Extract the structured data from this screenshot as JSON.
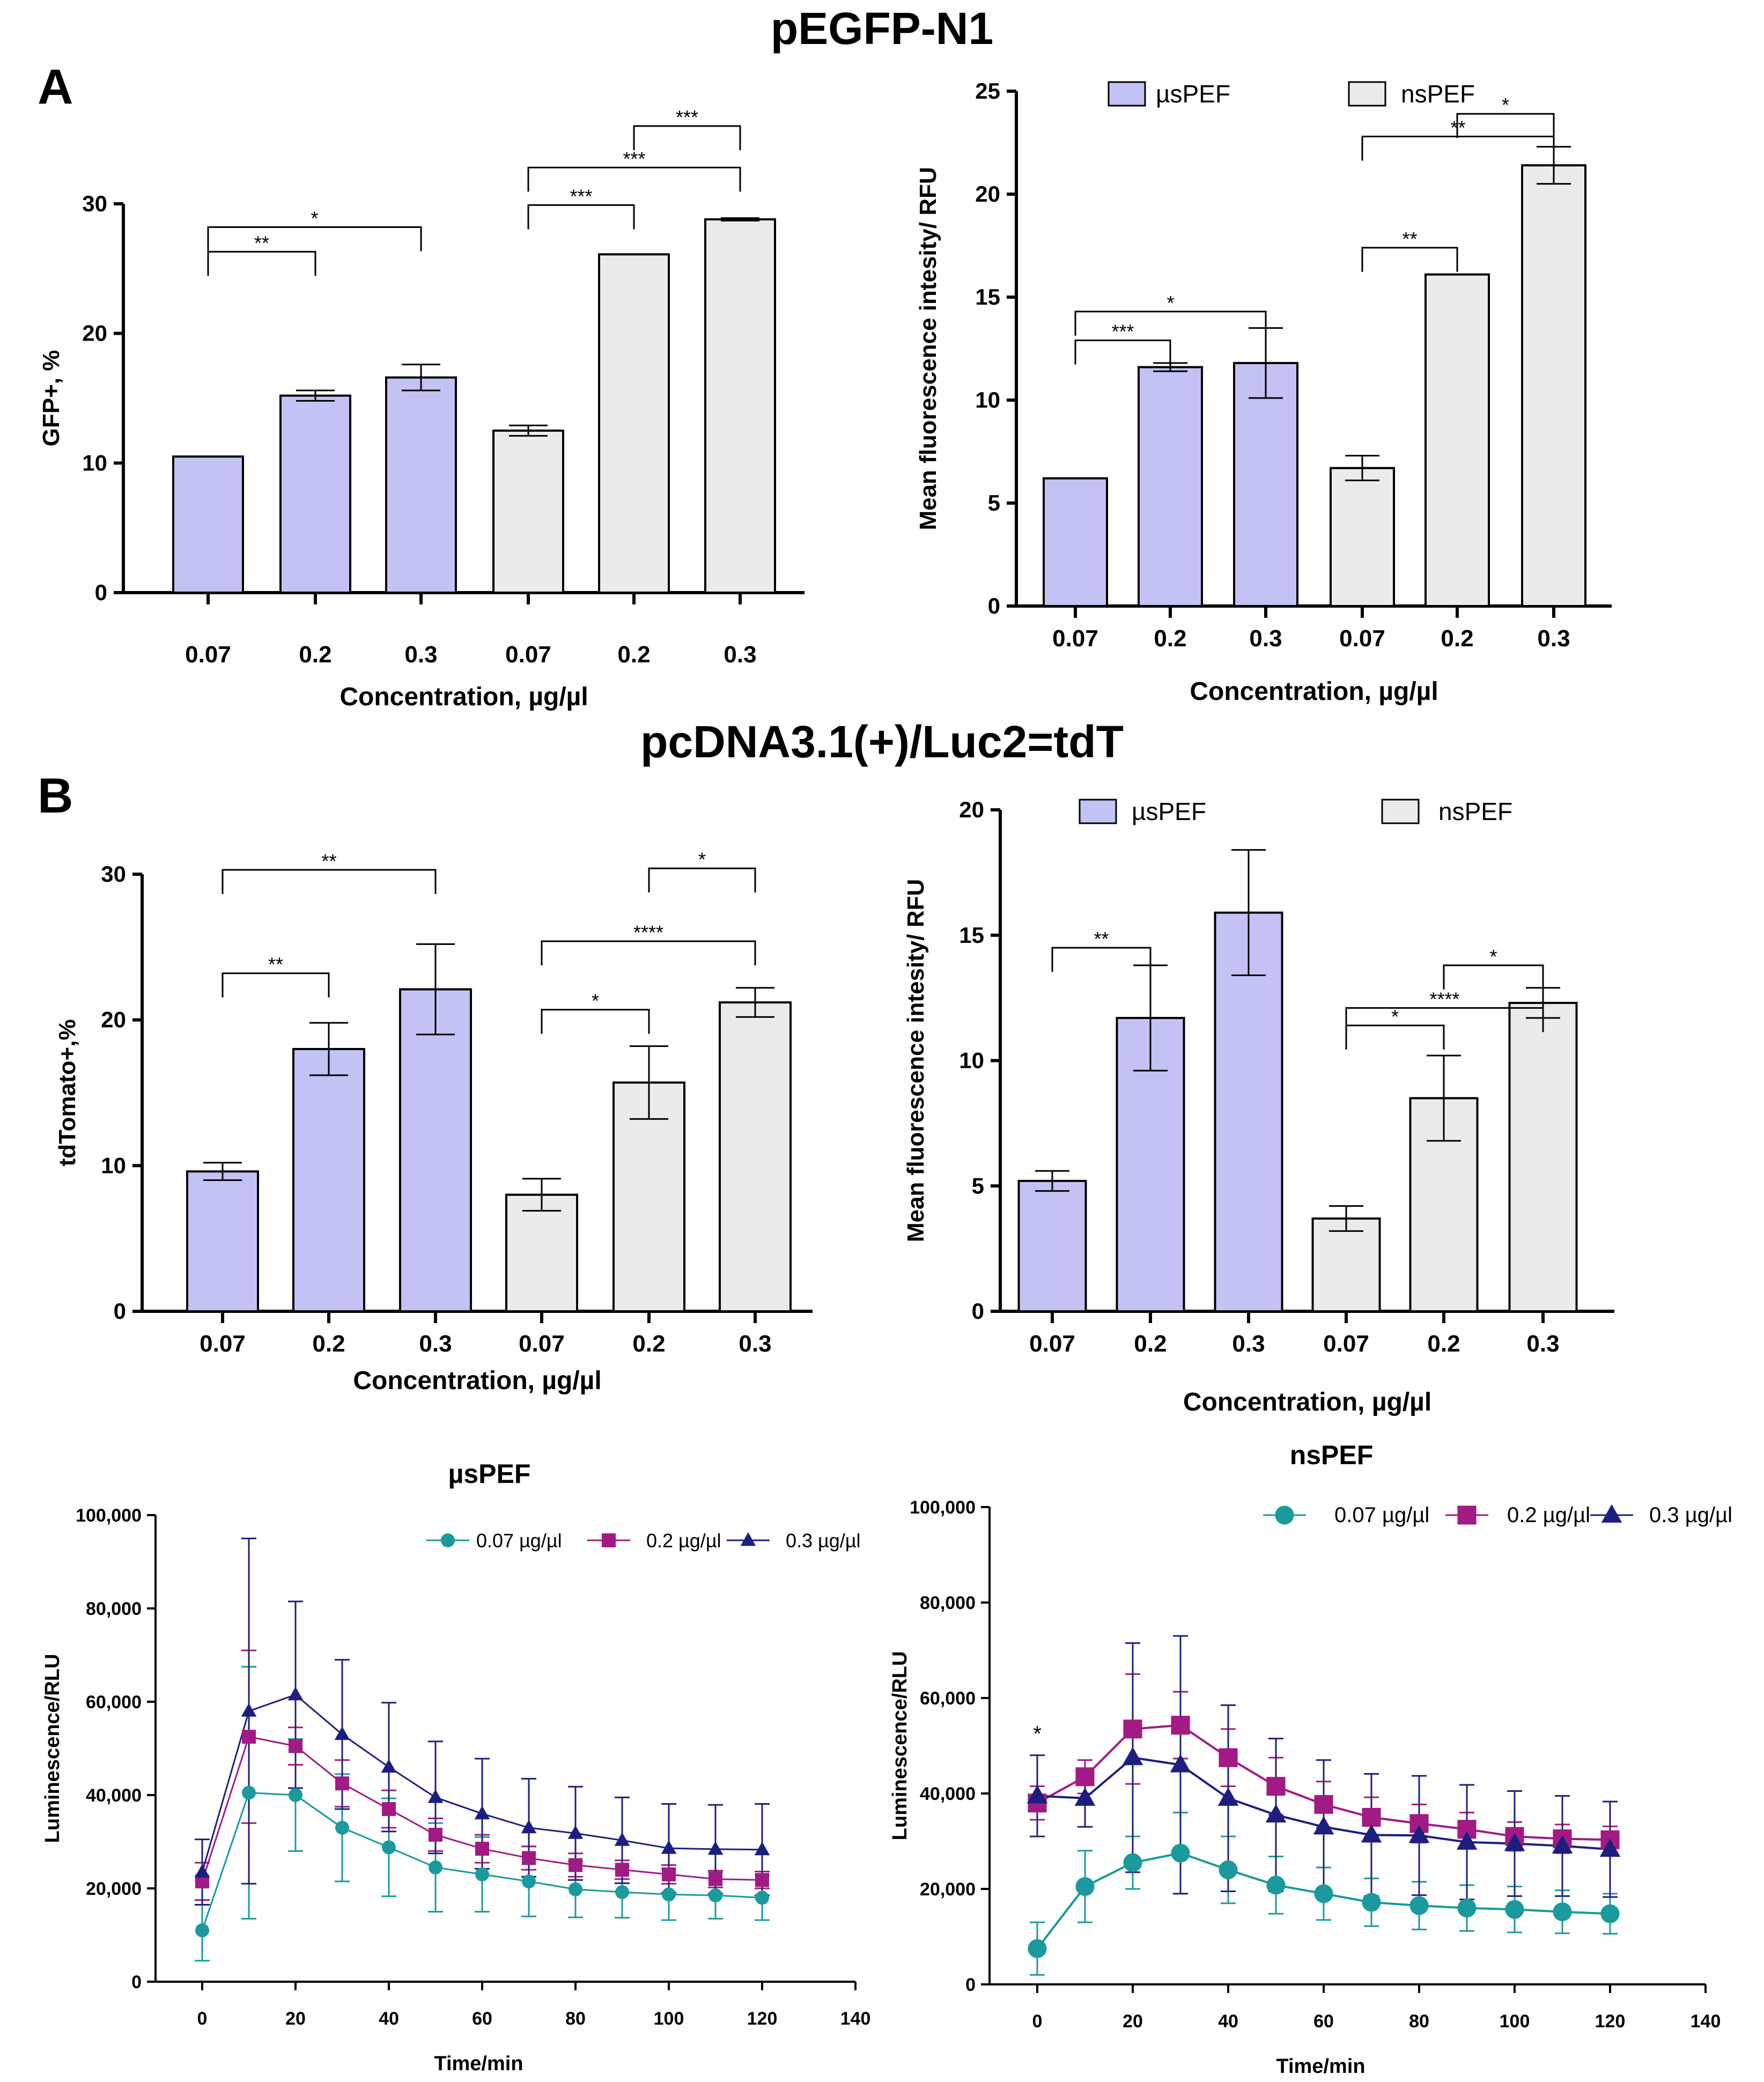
{
  "page": {
    "title_top": "pEGFP-N1",
    "title_mid": "pcDNA3.1(+)/Luc2=tdT",
    "panel_a": "A",
    "panel_b": "B"
  },
  "colors": {
    "us": "#c3c2f5",
    "ns": "#ebebeb",
    "teal": "#1a9a9c",
    "magenta": "#a21a83",
    "navy": "#1c1f80"
  },
  "chart_data": [
    {
      "id": "c1",
      "type": "bar",
      "categories": [
        "0.07",
        "0.2",
        "0.3",
        "0.07",
        "0.2",
        "0.3"
      ],
      "groups": [
        "us",
        "us",
        "us",
        "ns",
        "ns",
        "ns"
      ],
      "values": [
        10.5,
        15.2,
        16.6,
        12.5,
        26.1,
        28.8
      ],
      "errors": [
        0,
        0.4,
        1.0,
        0.4,
        0,
        0.1
      ],
      "ylim": [
        0,
        30
      ],
      "yticks": [
        0,
        10,
        20,
        30
      ],
      "xlabel": "Concentration, µg/µl",
      "ylabel": "GFP+, %",
      "legend": null,
      "brackets": [
        {
          "from": 0,
          "to": 1,
          "y": 26.3,
          "label": "**"
        },
        {
          "from": 0,
          "to": 2,
          "y": 28.2,
          "label": "*"
        },
        {
          "from": 3,
          "to": 4,
          "y": 29.9,
          "label": "***"
        },
        {
          "from": 3,
          "to": 5,
          "y": 32.8,
          "label": "***"
        },
        {
          "from": 4,
          "to": 5,
          "y": 36.0,
          "label": "***"
        }
      ]
    },
    {
      "id": "c2",
      "type": "bar",
      "categories": [
        "0.07",
        "0.2",
        "0.3",
        "0.07",
        "0.2",
        "0.3"
      ],
      "groups": [
        "us",
        "us",
        "us",
        "ns",
        "ns",
        "ns"
      ],
      "values": [
        6.2,
        11.6,
        11.8,
        6.7,
        16.1,
        21.4
      ],
      "errors": [
        0,
        0.2,
        1.7,
        0.6,
        0,
        0.9
      ],
      "ylim": [
        0,
        25
      ],
      "yticks": [
        0,
        5,
        10,
        15,
        20,
        25
      ],
      "xlabel": "Concentration, µg/µl",
      "ylabel": "Mean fluorescence intesity/ RFU",
      "legend": {
        "us": "µsPEF",
        "ns": "nsPEF"
      },
      "brackets": [
        {
          "from": 0,
          "to": 1,
          "y": 12.9,
          "label": "***"
        },
        {
          "from": 0,
          "to": 2,
          "y": 14.3,
          "label": "*"
        },
        {
          "from": 3,
          "to": 4,
          "y": 17.4,
          "label": "**"
        },
        {
          "from": 3,
          "to": 5,
          "y": 22.8,
          "label": "**"
        },
        {
          "from": 4,
          "to": 5,
          "y": 23.9,
          "label": "*"
        }
      ]
    },
    {
      "id": "c3",
      "type": "bar",
      "categories": [
        "0.07",
        "0.2",
        "0.3",
        "0.07",
        "0.2",
        "0.3"
      ],
      "groups": [
        "us",
        "us",
        "us",
        "ns",
        "ns",
        "ns"
      ],
      "values": [
        9.6,
        18.0,
        22.1,
        8.0,
        15.7,
        21.2
      ],
      "errors": [
        0.6,
        1.8,
        3.1,
        1.1,
        2.5,
        1.0
      ],
      "ylim": [
        0,
        30
      ],
      "yticks": [
        0,
        10,
        20,
        30
      ],
      "xlabel": "Concentration, µg/µl",
      "ylabel": "tdTomato+,%",
      "legend": null,
      "brackets": [
        {
          "from": 0,
          "to": 1,
          "y": 23.2,
          "label": "**"
        },
        {
          "from": 0,
          "to": 2,
          "y": 30.3,
          "label": "**"
        },
        {
          "from": 3,
          "to": 4,
          "y": 20.7,
          "label": "*"
        },
        {
          "from": 3,
          "to": 5,
          "y": 25.4,
          "label": "****"
        },
        {
          "from": 4,
          "to": 5,
          "y": 30.4,
          "label": "*"
        }
      ]
    },
    {
      "id": "c4",
      "type": "bar",
      "categories": [
        "0.07",
        "0.2",
        "0.3",
        "0.07",
        "0.2",
        "0.3"
      ],
      "groups": [
        "us",
        "us",
        "us",
        "ns",
        "ns",
        "ns"
      ],
      "values": [
        5.2,
        11.7,
        15.9,
        3.7,
        8.5,
        12.3
      ],
      "errors": [
        0.4,
        2.1,
        2.5,
        0.5,
        1.7,
        0.6
      ],
      "ylim": [
        0,
        20
      ],
      "yticks": [
        0,
        5,
        10,
        15,
        20
      ],
      "xlabel": "Concentration, µg/µl",
      "ylabel": "Mean fluorescence intesity/ RFU",
      "legend": {
        "us": "µsPEF",
        "ns": "nsPEF"
      },
      "brackets": [
        {
          "from": 0,
          "to": 1,
          "y": 14.5,
          "label": "**"
        },
        {
          "from": 3,
          "to": 4,
          "y": 11.4,
          "label": "*"
        },
        {
          "from": 3,
          "to": 5,
          "y": 12.1,
          "label": "****"
        },
        {
          "from": 4,
          "to": 5,
          "y": 13.8,
          "label": "*"
        }
      ]
    },
    {
      "id": "c5",
      "type": "line",
      "title": "µsPEF",
      "x": [
        0,
        10,
        20,
        30,
        40,
        50,
        60,
        70,
        80,
        90,
        100,
        110,
        120
      ],
      "xlim": [
        -10,
        140
      ],
      "xticks": [
        0,
        20,
        40,
        60,
        80,
        100,
        120,
        140
      ],
      "ylim": [
        0,
        100000
      ],
      "yticks": [
        0,
        20000,
        40000,
        60000,
        80000,
        100000
      ],
      "ytick_labels": [
        "0",
        "20,000",
        "40,000",
        "60,000",
        "80,000",
        "100,000"
      ],
      "xlabel": "Time/min",
      "ylabel": "Luminescence/RLU",
      "marker_scale": 1,
      "series": [
        {
          "name": "0.07 µg/µl",
          "color": "teal",
          "marker": "circle",
          "values": [
            11000,
            40500,
            40000,
            33000,
            28800,
            24500,
            23000,
            21500,
            19800,
            19200,
            18700,
            18500,
            18000
          ],
          "errors": [
            6500,
            27000,
            12000,
            11500,
            10500,
            9500,
            8000,
            7500,
            6000,
            5500,
            5500,
            5000,
            4800
          ]
        },
        {
          "name": "0.2 µg/µl",
          "color": "magenta",
          "marker": "square",
          "values": [
            21500,
            52500,
            50500,
            42500,
            37000,
            31500,
            28500,
            26500,
            25000,
            24000,
            23000,
            22000,
            21800
          ],
          "errors": [
            4000,
            18500,
            4000,
            5000,
            4000,
            3500,
            3000,
            2500,
            2500,
            2000,
            2000,
            1800,
            1800
          ]
        },
        {
          "name": "0.3 µg/µl",
          "color": "navy",
          "marker": "triangle",
          "values": [
            23500,
            58000,
            61500,
            53000,
            46000,
            39500,
            36000,
            33000,
            31800,
            30300,
            28600,
            28400,
            28300
          ],
          "errors": [
            7000,
            37000,
            20000,
            16000,
            13800,
            12000,
            11800,
            10500,
            10000,
            9200,
            9500,
            9500,
            9800
          ]
        }
      ],
      "annotations": []
    },
    {
      "id": "c6",
      "type": "line",
      "title": "nsPEF",
      "x": [
        0,
        10,
        20,
        30,
        40,
        50,
        60,
        70,
        80,
        90,
        100,
        110,
        120
      ],
      "xlim": [
        -10,
        140
      ],
      "xticks": [
        0,
        20,
        40,
        60,
        80,
        100,
        120,
        140
      ],
      "ylim": [
        0,
        100000
      ],
      "yticks": [
        0,
        20000,
        40000,
        60000,
        80000,
        100000
      ],
      "ytick_labels": [
        "0",
        "20,000",
        "40,000",
        "60,000",
        "80,000",
        "100,000"
      ],
      "xlabel": "Time/min",
      "ylabel": "Luminescence/RLU",
      "marker_scale": 1.35,
      "series": [
        {
          "name": "0.07 µg/µl",
          "color": "teal",
          "marker": "circle",
          "values": [
            7500,
            20500,
            25500,
            27500,
            24000,
            20800,
            19000,
            17200,
            16500,
            16000,
            15700,
            15200,
            14800
          ],
          "errors": [
            5500,
            7500,
            5500,
            8500,
            7000,
            6000,
            5500,
            5000,
            5000,
            4800,
            4800,
            4500,
            4200
          ]
        },
        {
          "name": "0.2 µg/µl",
          "color": "magenta",
          "marker": "square",
          "values": [
            38000,
            43500,
            53500,
            54300,
            47500,
            41500,
            37700,
            35000,
            33700,
            32500,
            31000,
            30500,
            30300
          ],
          "errors": [
            3500,
            3500,
            11500,
            7000,
            6000,
            6000,
            4800,
            4200,
            4000,
            3500,
            3000,
            3000,
            2800
          ]
        },
        {
          "name": "0.3 µg/µl",
          "color": "navy",
          "marker": "triangle",
          "values": [
            39500,
            39000,
            47500,
            46000,
            39000,
            35500,
            33000,
            31300,
            31200,
            29800,
            29500,
            29000,
            28300
          ],
          "errors": [
            8500,
            6000,
            24000,
            27000,
            19500,
            16000,
            14000,
            12800,
            12500,
            12000,
            11000,
            10500,
            10000
          ]
        }
      ],
      "annotations": [
        {
          "x": 0,
          "y": 51000,
          "label": "*"
        }
      ]
    }
  ]
}
